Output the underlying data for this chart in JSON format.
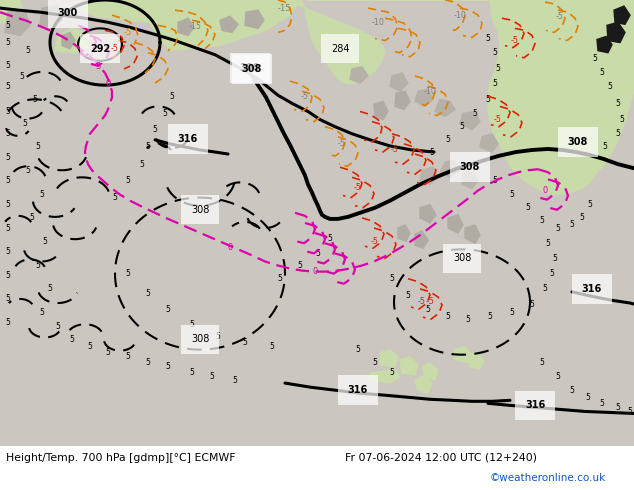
{
  "title_left": "Height/Temp. 700 hPa [gdmp][°C] ECMWF",
  "title_right": "Fr 07-06-2024 12:00 UTC (12+240)",
  "credit": "©weatheronline.co.uk",
  "fig_width": 6.34,
  "fig_height": 4.9,
  "dpi": 100,
  "map_bg": "#d2cfc8",
  "land_green": "#c8deb0",
  "land_gray": "#b8b4ac",
  "ocean_color": "#d0cdc8"
}
